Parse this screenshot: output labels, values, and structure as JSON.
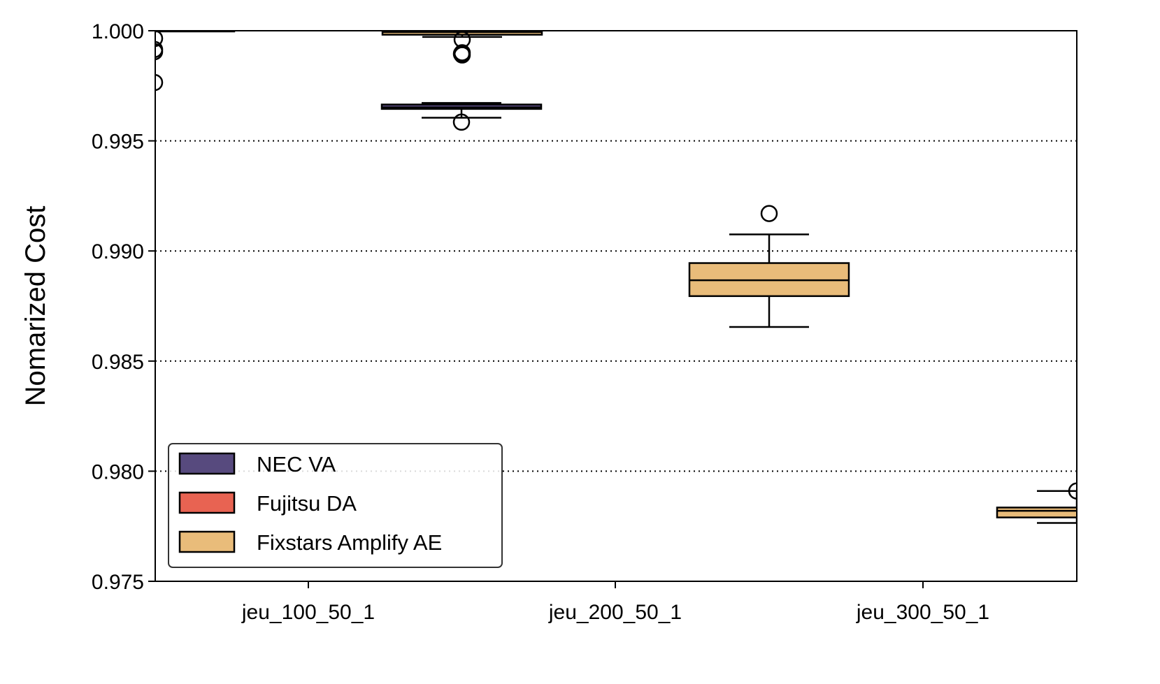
{
  "chart_data": {
    "type": "box",
    "ylabel": "Nomarized Cost",
    "xlabel": "",
    "ylim": [
      0.975,
      1.0
    ],
    "yticks": [
      "0.975",
      "0.980",
      "0.985",
      "0.990",
      "0.995",
      "1.000"
    ],
    "ytick_values": [
      0.975,
      0.98,
      0.985,
      0.99,
      0.995,
      1.0
    ],
    "categories": [
      "jeu_100_50_1",
      "jeu_200_50_1",
      "jeu_300_50_1"
    ],
    "grid": "horizontal dotted",
    "legend_position": "lower-left",
    "series": [
      {
        "name": "NEC VA",
        "color": "#574a7e",
        "boxes": [
          {
            "category": "jeu_100_50_1",
            "whisker_low": 1.0,
            "q1": 1.0,
            "median": 1.0,
            "q3": 1.0,
            "whisker_high": 1.0,
            "outliers": [
              0.99965,
              0.99915,
              0.99905,
              0.99765
            ]
          },
          {
            "category": "jeu_200_50_1",
            "whisker_low": 0.99605,
            "q1": 0.99645,
            "median": 0.99652,
            "q3": 0.99665,
            "whisker_high": 0.99672,
            "outliers": [
              0.99895,
              0.99585
            ]
          },
          {
            "category": "jeu_300_50_1",
            "whisker_low": null,
            "q1": null,
            "median": null,
            "q3": null,
            "whisker_high": null,
            "outliers": []
          }
        ]
      },
      {
        "name": "Fujitsu DA",
        "color": "#e86352",
        "boxes": [
          {
            "category": "jeu_100_50_1",
            "whisker_low": null,
            "q1": null,
            "median": null,
            "q3": null,
            "whisker_high": null,
            "outliers": []
          },
          {
            "category": "jeu_200_50_1",
            "whisker_low": null,
            "q1": null,
            "median": null,
            "q3": null,
            "whisker_high": null,
            "outliers": []
          },
          {
            "category": "jeu_300_50_1",
            "whisker_low": null,
            "q1": null,
            "median": null,
            "q3": null,
            "whisker_high": null,
            "outliers": []
          }
        ]
      },
      {
        "name": "Fixstars Amplify AE",
        "color": "#e9bc7a",
        "boxes": [
          {
            "category": "jeu_100_50_1",
            "whisker_low": 0.99972,
            "q1": 0.99982,
            "median": 0.99994,
            "q3": 1.0,
            "whisker_high": 1.0,
            "outliers": [
              0.9996,
              0.999,
              0.9989
            ]
          },
          {
            "category": "jeu_200_50_1",
            "whisker_low": 0.98655,
            "q1": 0.98795,
            "median": 0.98867,
            "q3": 0.98945,
            "whisker_high": 0.99075,
            "outliers": [
              0.9917
            ]
          },
          {
            "category": "jeu_300_50_1",
            "whisker_low": 0.97765,
            "q1": 0.9779,
            "median": 0.9782,
            "q3": 0.97835,
            "whisker_high": 0.9791,
            "outliers": [
              0.9791
            ]
          }
        ]
      }
    ]
  }
}
